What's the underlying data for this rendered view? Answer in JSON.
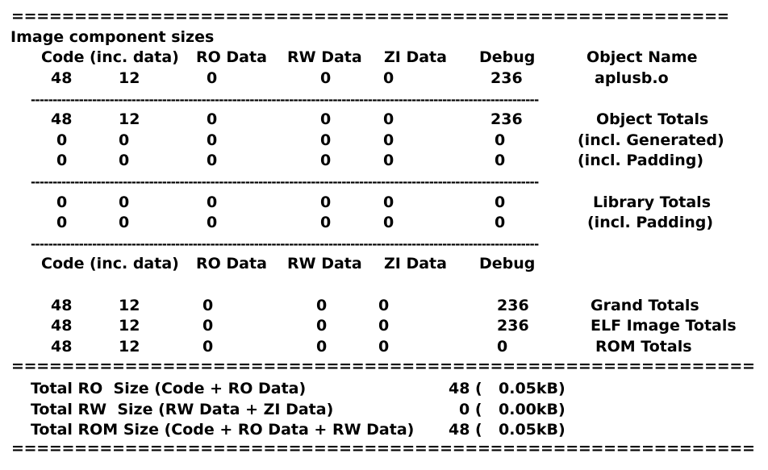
{
  "sep_top": "=====================================================================",
  "sep_full": "=======================================================================================================",
  "dash_line": "--------------------------------------------------------------------------------------------------------------------",
  "title": "Image component sizes",
  "headers": {
    "code": "Code",
    "inc": "(inc. data)",
    "ro": "RO Data",
    "rw": "RW Data",
    "zi": "ZI Data",
    "debug": "Debug",
    "object_name": "Object Name"
  },
  "object_row": {
    "code": "48",
    "inc": "12",
    "ro": "0",
    "rw": "0",
    "zi": "0",
    "debug": "236",
    "name": "aplusb.o"
  },
  "object_totals": [
    {
      "code": "48",
      "inc": "12",
      "ro": "0",
      "rw": "0",
      "zi": "0",
      "debug": "236",
      "name": "Object Totals"
    },
    {
      "code": "0",
      "inc": "0",
      "ro": "0",
      "rw": "0",
      "zi": "0",
      "debug": "0",
      "name": "(incl. Generated)"
    },
    {
      "code": "0",
      "inc": "0",
      "ro": "0",
      "rw": "0",
      "zi": "0",
      "debug": "0",
      "name": "(incl. Padding)"
    }
  ],
  "library_totals": [
    {
      "code": "0",
      "inc": "0",
      "ro": "0",
      "rw": "0",
      "zi": "0",
      "debug": "0",
      "name": "Library Totals"
    },
    {
      "code": "0",
      "inc": "0",
      "ro": "0",
      "rw": "0",
      "zi": "0",
      "debug": "0",
      "name": "(incl. Padding)"
    }
  ],
  "grand": [
    {
      "code": "48",
      "inc": "12",
      "ro": "0",
      "rw": "0",
      "zi": "0",
      "debug": "236",
      "name": "Grand Totals"
    },
    {
      "code": "48",
      "inc": "12",
      "ro": "0",
      "rw": "0",
      "zi": "0",
      "debug": "236",
      "name": "ELF Image Totals"
    },
    {
      "code": "48",
      "inc": "12",
      "ro": "0",
      "rw": "0",
      "zi": "0",
      "debug": "0",
      "name": "ROM Totals"
    }
  ],
  "summary": [
    {
      "label": "Total RO  Size (Code + RO Data)",
      "value": "48 (",
      "kb": "0.05kB)"
    },
    {
      "label": "Total RW  Size (RW Data + ZI Data)",
      "value": "0 (",
      "kb": "0.00kB)"
    },
    {
      "label": "Total ROM Size (Code + RO Data + RW Data)",
      "value": "48 (",
      "kb": "0.05kB)"
    }
  ]
}
